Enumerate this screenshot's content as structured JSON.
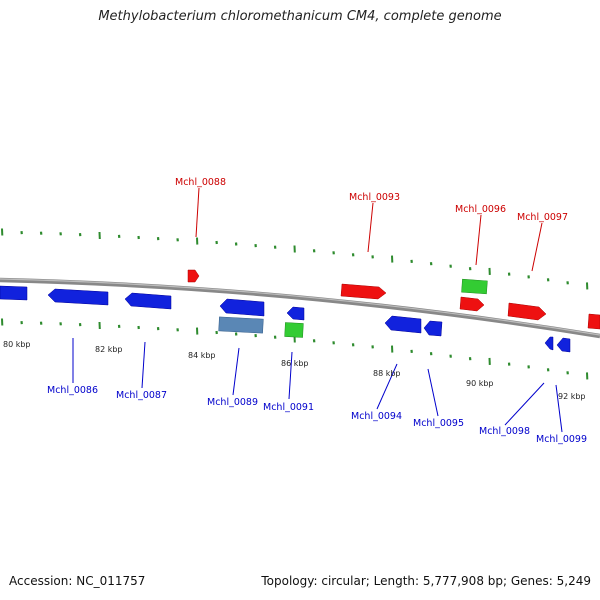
{
  "title": "Methylobacterium chloromethanicum CM4, complete genome",
  "footer": {
    "accession": "Accession: NC_011757",
    "stats": "Topology: circular; Length: 5,777,908 bp; Genes: 5,249"
  },
  "colors": {
    "backbone": "#888888",
    "tick": "#2e8b2e",
    "forward_cds": "#ee1111",
    "reverse_cds": "#1122dd",
    "rna": "#33cc33",
    "other": "#5a87b5",
    "forward_label": "#cc0000",
    "reverse_label": "#0000cc"
  },
  "scale_labels": [
    {
      "text": "80 kbp",
      "kbp": 80
    },
    {
      "text": "82 kbp",
      "kbp": 82
    },
    {
      "text": "84 kbp",
      "kbp": 84
    },
    {
      "text": "86 kbp",
      "kbp": 86
    },
    {
      "text": "88 kbp",
      "kbp": 88
    },
    {
      "text": "90 kbp",
      "kbp": 90
    },
    {
      "text": "92 kbp",
      "kbp": 92
    }
  ],
  "forward_labels": [
    "Mchl_0088",
    "Mchl_0093",
    "Mchl_0096",
    "Mchl_0097"
  ],
  "reverse_labels": [
    "Mchl_0086",
    "Mchl_0087",
    "Mchl_0089",
    "Mchl_0091",
    "Mchl_0094",
    "Mchl_0095",
    "Mchl_0098",
    "Mchl_0099"
  ]
}
